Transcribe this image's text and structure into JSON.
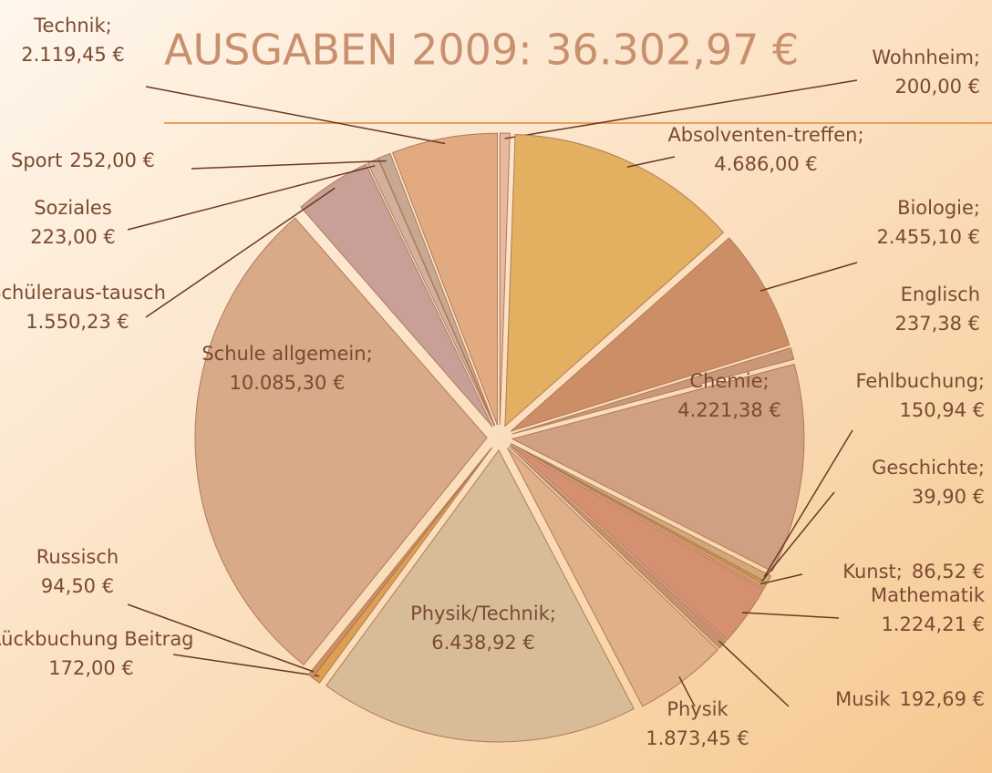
{
  "chart_data": {
    "type": "pie",
    "title": "AUSGABEN 2009:   36.302,97 €",
    "categories": [
      "Wohnheim;",
      "Absolventen-treffen;",
      "Biologie;",
      "Englisch",
      "Chemie;",
      "Fehlbuchung;",
      "Geschichte;",
      "Kunst;",
      "Mathematik",
      "Musik",
      "Physik",
      "Physik/Technik;",
      "Rückbuchung Beitrag",
      "Russisch",
      "Schule allgemein;",
      "Schüleraus-tausch",
      "Soziales",
      "Sport",
      "Technik;"
    ],
    "values": [
      200.0,
      4686.0,
      2455.1,
      237.38,
      4221.38,
      150.94,
      39.9,
      86.52,
      1224.21,
      192.69,
      1873.45,
      6438.92,
      172.0,
      94.5,
      10085.3,
      1550.23,
      223.0,
      252.0,
      2119.45
    ],
    "value_labels": [
      "200,00 €",
      "4.686,00 €",
      "2.455,10 €",
      "237,38 €",
      "4.221,38 €",
      "150,94 €",
      "39,90 €",
      "86,52 €",
      "1.224,21 €",
      "192,69 €",
      "1.873,45 €",
      "6.438,92 €",
      "172,00 €",
      "94,50 €",
      "10.085,30 €",
      "1.550,23 €",
      "223,00 €",
      "252,00 €",
      "2.119,45 €"
    ],
    "colors": [
      "#e8b8a0",
      "#e2b060",
      "#cc8e66",
      "#c89878",
      "#cfa082",
      "#d0a87a",
      "#e0a848",
      "#d89868",
      "#d49070",
      "#c89070",
      "#e0b088",
      "#d8bc98",
      "#dca050",
      "#d09060",
      "#d8aa88",
      "#c8a098",
      "#d2b0a0",
      "#c8a890",
      "#e2aa80"
    ]
  }
}
